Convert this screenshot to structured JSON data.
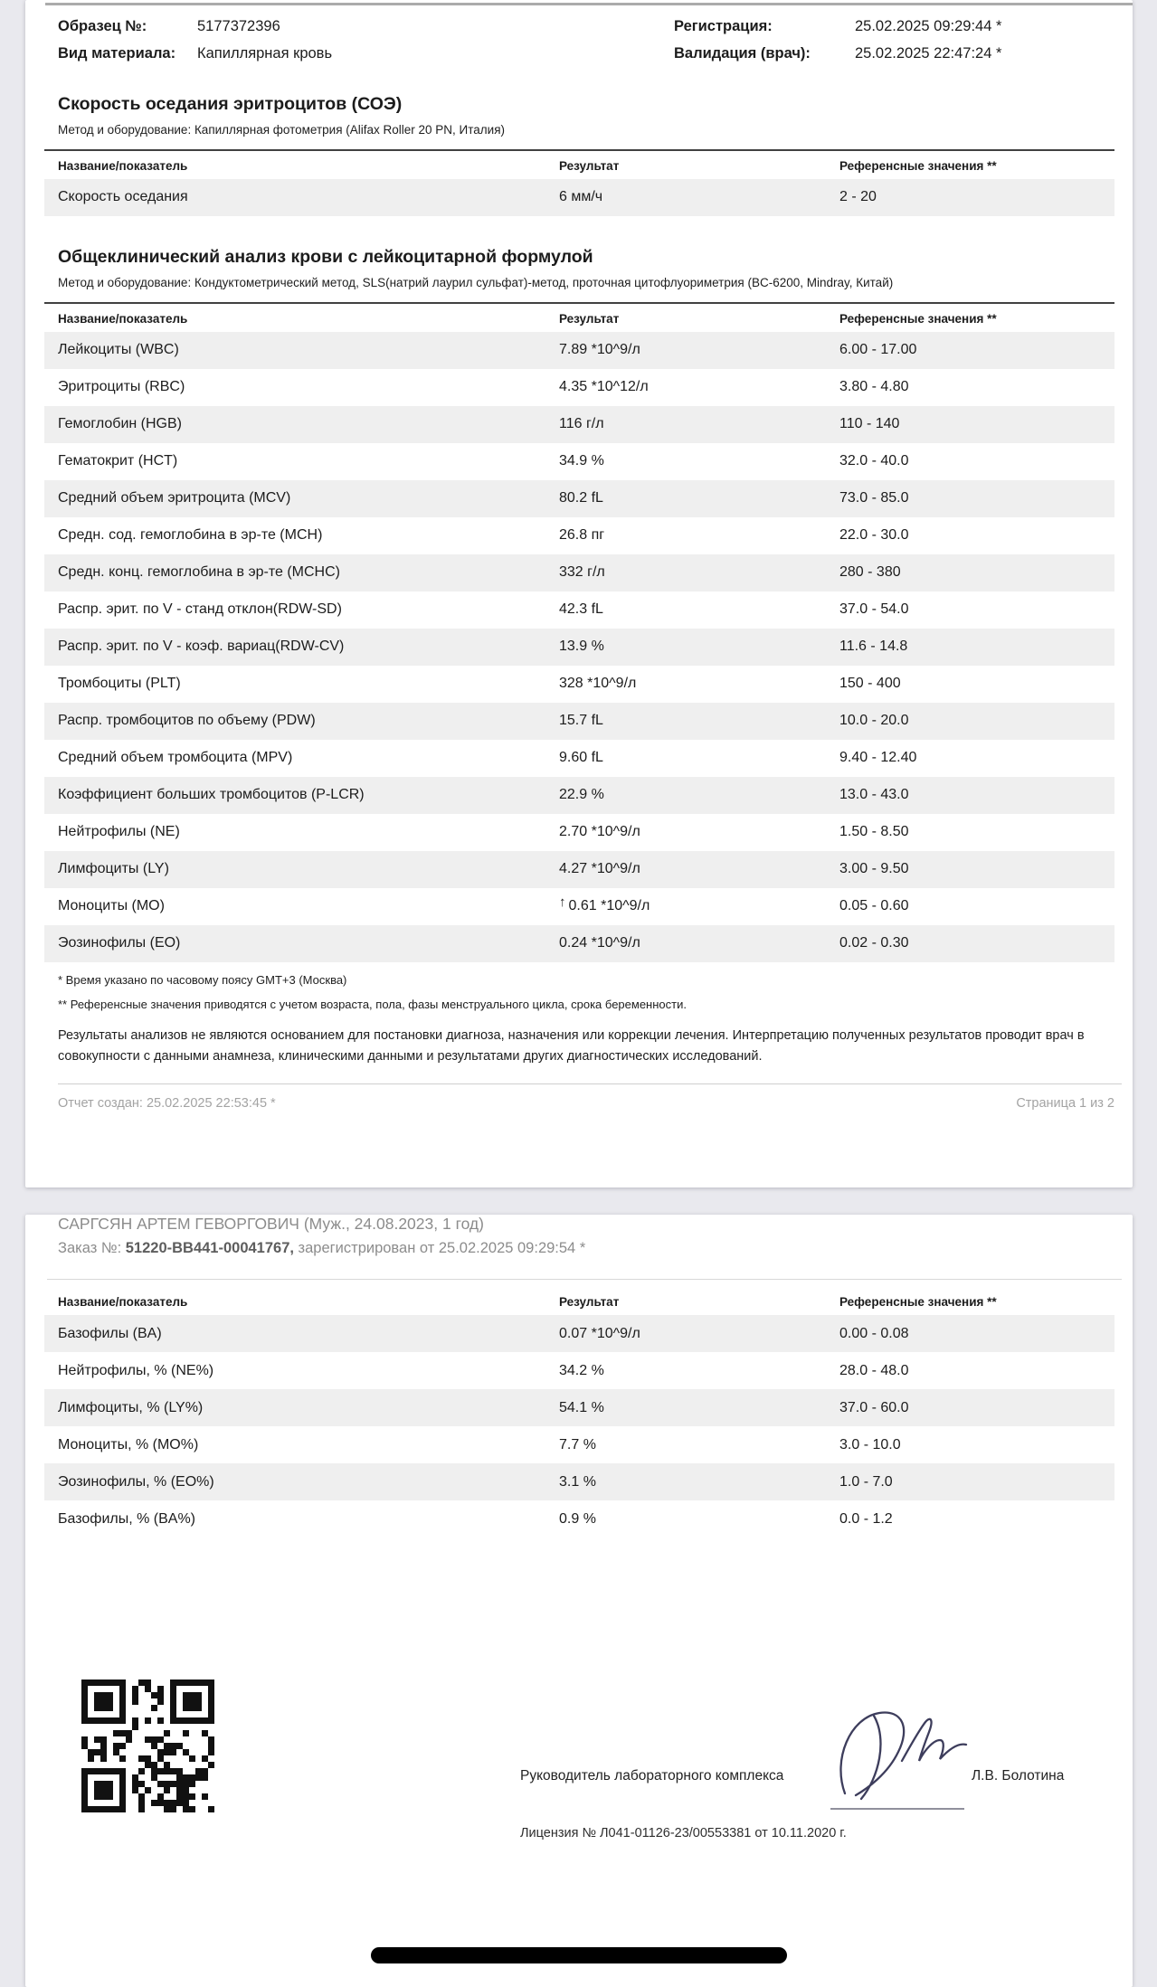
{
  "info": {
    "sample_label": "Образец №:",
    "sample_value": "5177372396",
    "material_label": "Вид материала:",
    "material_value": "Капиллярная кровь",
    "registration_label": "Регистрация:",
    "registration_value": "25.02.2025 09:29:44 *",
    "validation_label": "Валидация (врач):",
    "validation_value": "25.02.2025 22:47:24 *"
  },
  "table_headers": {
    "name": "Название/показатель",
    "result": "Результат",
    "ref": "Референсные значения **"
  },
  "soe": {
    "title": "Скорость оседания эритроцитов (СОЭ)",
    "method": "Метод и оборудование: Капиллярная фотометрия (Alifax Roller 20 PN, Италия)",
    "rows": [
      {
        "name": "Скорость оседания",
        "flag": "",
        "result": "6 мм/ч",
        "ref": "2 - 20"
      }
    ]
  },
  "cbc": {
    "title": "Общеклинический анализ крови с лейкоцитарной формулой",
    "method": "Метод и оборудование: Кондуктометрический метод, SLS(натрий лаурил сульфат)-метод, проточная цитофлуориметрия (BC-6200, Mindray, Китай)",
    "rows": [
      {
        "name": "Лейкоциты (WBC)",
        "flag": "",
        "result": "7.89 *10^9/л",
        "ref": "6.00 - 17.00"
      },
      {
        "name": "Эритроциты (RBC)",
        "flag": "",
        "result": "4.35 *10^12/л",
        "ref": "3.80 - 4.80"
      },
      {
        "name": "Гемоглобин (HGB)",
        "flag": "",
        "result": "116 г/л",
        "ref": "110 - 140"
      },
      {
        "name": "Гематокрит (HCT)",
        "flag": "",
        "result": "34.9 %",
        "ref": "32.0 - 40.0"
      },
      {
        "name": "Средний объем эритроцита (MCV)",
        "flag": "",
        "result": "80.2 fL",
        "ref": "73.0 - 85.0"
      },
      {
        "name": "Средн. сод. гемоглобина в эр-те (MCH)",
        "flag": "",
        "result": "26.8 пг",
        "ref": "22.0 - 30.0"
      },
      {
        "name": "Средн. конц. гемоглобина в эр-те (MCHC)",
        "flag": "",
        "result": "332 г/л",
        "ref": "280 - 380"
      },
      {
        "name": "Распр. эрит. по V - станд отклон(RDW-SD)",
        "flag": "",
        "result": "42.3 fL",
        "ref": "37.0 - 54.0"
      },
      {
        "name": "Распр. эрит. по V - коэф. вариац(RDW-CV)",
        "flag": "",
        "result": "13.9 %",
        "ref": "11.6 - 14.8"
      },
      {
        "name": "Тромбоциты (PLT)",
        "flag": "",
        "result": "328 *10^9/л",
        "ref": "150 - 400"
      },
      {
        "name": "Распр. тромбоцитов по объему (PDW)",
        "flag": "",
        "result": "15.7 fL",
        "ref": "10.0 - 20.0"
      },
      {
        "name": "Средний объем тромбоцита (MPV)",
        "flag": "",
        "result": "9.60 fL",
        "ref": "9.40 - 12.40"
      },
      {
        "name": "Коэффициент больших тромбоцитов (P-LCR)",
        "flag": "",
        "result": "22.9 %",
        "ref": "13.0 - 43.0"
      },
      {
        "name": "Нейтрофилы (NE)",
        "flag": "",
        "result": "2.70 *10^9/л",
        "ref": "1.50 - 8.50"
      },
      {
        "name": "Лимфоциты (LY)",
        "flag": "",
        "result": "4.27 *10^9/л",
        "ref": "3.00 - 9.50"
      },
      {
        "name": "Моноциты (MO)",
        "flag": "↑",
        "result": "0.61 *10^9/л",
        "ref": "0.05 - 0.60"
      },
      {
        "name": "Эозинофилы (EO)",
        "flag": "",
        "result": "0.24 *10^9/л",
        "ref": "0.02 - 0.30"
      }
    ]
  },
  "footnotes": {
    "timezone": "* Время указано по часовому поясу GMT+3 (Москва)",
    "reference": "** Референсные значения приводятся с учетом возраста, пола, фазы менструального цикла, срока беременности."
  },
  "disclaimer": "Результаты анализов не являются основанием для постановки диагноза, назначения или коррекции лечения. Интерпретацию полученных результатов проводит врач в совокупности с данными анамнеза, клиническими данными и результатами других диагностических исследований.",
  "footer": {
    "created": "Отчет создан: 25.02.2025 22:53:45 *",
    "page": "Страница 1 из 2"
  },
  "page2": {
    "patient": "САРГСЯН АРТЕМ ГЕВОРГОВИЧ (Муж., 24.08.2023, 1 год)",
    "order_prefix": "Заказ №: ",
    "order_number": "51220-BB441-00041767,",
    "order_suffix": " зарегистрирован от 25.02.2025 09:29:54 *",
    "diff": {
      "rows": [
        {
          "name": "Базофилы (BA)",
          "flag": "",
          "result": "0.07 *10^9/л",
          "ref": "0.00 - 0.08"
        },
        {
          "name": "Нейтрофилы, % (NE%)",
          "flag": "",
          "result": "34.2 %",
          "ref": "28.0 - 48.0"
        },
        {
          "name": "Лимфоциты, % (LY%)",
          "flag": "",
          "result": "54.1 %",
          "ref": "37.0 - 60.0"
        },
        {
          "name": "Моноциты, % (MO%)",
          "flag": "",
          "result": "7.7 %",
          "ref": "3.0 - 10.0"
        },
        {
          "name": "Эозинофилы, % (EO%)",
          "flag": "",
          "result": "3.1 %",
          "ref": "1.0 - 7.0"
        },
        {
          "name": "Базофилы, % (BA%)",
          "flag": "",
          "result": "0.9 %",
          "ref": "0.0 - 1.2"
        }
      ]
    },
    "signature": {
      "role": "Руководитель лабораторного комплекса",
      "name": "Л.В. Болотина",
      "license": "Лицензия № Л041-01126-23/00553381 от 10.11.2020 г."
    }
  },
  "colors": {
    "row_shading": "#efefef",
    "signature_ink": "#3d3d5c",
    "background": "#e9e9ee"
  }
}
